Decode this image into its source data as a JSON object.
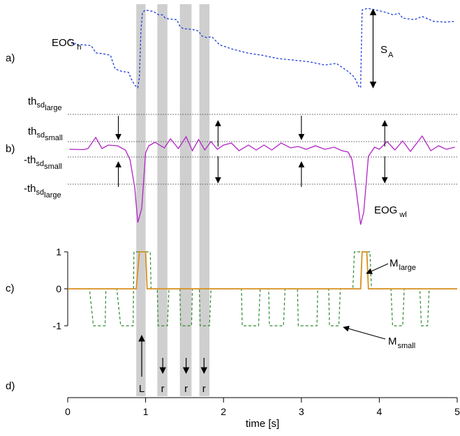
{
  "chart_data": {
    "type": "line",
    "xlabel": "time [s]",
    "xlim": [
      0,
      5
    ],
    "x_ticks": [
      "0",
      "1",
      "2",
      "3",
      "4",
      "5"
    ],
    "panel_labels": [
      "a)",
      "b)",
      "c)",
      "d)"
    ],
    "shaded_intervals_s": [
      [
        0.88,
        1.0
      ],
      [
        1.15,
        1.28
      ],
      [
        1.44,
        1.59
      ],
      [
        1.69,
        1.82
      ]
    ],
    "panel_a": {
      "series": [
        {
          "label_main": "EOG",
          "label_sub": "h",
          "color": "#1f3fd6",
          "style": "dashed",
          "x": [
            0.02,
            0.08,
            0.1,
            0.12,
            0.2,
            0.3,
            0.33,
            0.36,
            0.45,
            0.55,
            0.58,
            0.61,
            0.7,
            0.78,
            0.81,
            0.86,
            0.9,
            0.92,
            0.94,
            0.96,
            1.0,
            1.1,
            1.17,
            1.22,
            1.25,
            1.3,
            1.4,
            1.44,
            1.48,
            1.6,
            1.68,
            1.72,
            1.78,
            1.85,
            1.95,
            2.1,
            2.3,
            2.5,
            2.7,
            2.9,
            3.1,
            3.3,
            3.45,
            3.6,
            3.68,
            3.74,
            3.76,
            3.78,
            3.85,
            3.95,
            4.05,
            4.18,
            4.25,
            4.3,
            4.45,
            4.55,
            4.7,
            4.85,
            4.97
          ],
          "y": [
            0.62,
            0.55,
            0.57,
            0.55,
            0.55,
            0.54,
            0.5,
            0.45,
            0.44,
            0.42,
            0.33,
            0.25,
            0.22,
            0.21,
            0.14,
            0.05,
            0.02,
            0.15,
            0.72,
            0.95,
            0.98,
            0.96,
            0.92,
            0.92,
            0.88,
            0.87,
            0.86,
            0.78,
            0.75,
            0.74,
            0.72,
            0.66,
            0.64,
            0.65,
            0.55,
            0.5,
            0.45,
            0.42,
            0.38,
            0.36,
            0.34,
            0.3,
            0.32,
            0.22,
            0.15,
            0.03,
            0.02,
            0.98,
            1.0,
            0.98,
            0.96,
            0.92,
            0.94,
            0.88,
            0.86,
            0.9,
            0.84,
            0.83,
            0.84
          ]
        }
      ],
      "annotation_main": "S",
      "annotation_sub": "A"
    },
    "panel_b": {
      "series": [
        {
          "label_main": "EOG",
          "label_sub": "wl",
          "color": "#b323c7",
          "style": "solid",
          "x": [
            0.02,
            0.2,
            0.26,
            0.36,
            0.44,
            0.52,
            0.64,
            0.74,
            0.8,
            0.86,
            0.9,
            0.95,
            1.0,
            1.04,
            1.12,
            1.24,
            1.32,
            1.42,
            1.52,
            1.6,
            1.68,
            1.76,
            1.84,
            1.92,
            2.0,
            2.1,
            2.2,
            2.32,
            2.42,
            2.52,
            2.62,
            2.74,
            2.86,
            2.96,
            3.06,
            3.18,
            3.3,
            3.42,
            3.52,
            3.6,
            3.65,
            3.7,
            3.76,
            3.8,
            3.86,
            3.94,
            4.0,
            4.1,
            4.2,
            4.3,
            4.4,
            4.55,
            4.66,
            4.76,
            4.86,
            4.97
          ],
          "y": [
            0,
            -0.005,
            0.01,
            0.17,
            0.01,
            0.06,
            0.05,
            -0.01,
            -0.15,
            -0.55,
            -1.05,
            -0.85,
            -0.05,
            0.05,
            0.1,
            0.02,
            0.15,
            0.01,
            0.18,
            -0.02,
            0.14,
            -0.01,
            0.11,
            0.0,
            0.06,
            0.09,
            -0.02,
            0.06,
            -0.01,
            0.06,
            -0.01,
            0.09,
            0.02,
            0.04,
            0.0,
            0.05,
            0.0,
            0.03,
            -0.02,
            -0.04,
            -0.15,
            -0.55,
            -1.08,
            -0.9,
            -0.1,
            0.03,
            0.0,
            0.11,
            -0.01,
            0.12,
            -0.03,
            0.19,
            -0.02,
            0.05,
            0.0,
            0.03
          ]
        }
      ],
      "threshold_small": 0.11,
      "threshold_large": 0.5,
      "threshold_labels": [
        {
          "main": "th",
          "sub": "sd",
          "subsub": "large",
          "sign": ""
        },
        {
          "main": "th",
          "sub": "sd",
          "subsub": "small",
          "sign": ""
        },
        {
          "main": "th",
          "sub": "sd",
          "subsub": "small",
          "sign": "-"
        },
        {
          "main": "th",
          "sub": "sd",
          "subsub": "large",
          "sign": "-"
        }
      ],
      "arrow_times_s": [
        0.65,
        1.93,
        3.0,
        4.07
      ]
    },
    "panel_c": {
      "y_ticks": [
        "1",
        "0",
        "-1"
      ],
      "ylim": [
        -1,
        1
      ],
      "series": [
        {
          "label_main": "M",
          "label_sub": "large",
          "color": "#d9901e",
          "style": "solid",
          "x": [
            0,
            0.88,
            0.92,
            1.0,
            1.02,
            3.76,
            3.78,
            3.84,
            3.86,
            5.0
          ],
          "y": [
            0,
            0,
            1,
            1,
            0,
            0,
            1,
            1,
            0,
            0
          ]
        },
        {
          "label_main": "M",
          "label_sub": "small",
          "color": "#2e8b2e",
          "style": "dashed",
          "x": [
            0,
            0.28,
            0.33,
            0.48,
            0.49,
            0.63,
            0.68,
            0.84,
            0.85,
            1.06,
            1.07,
            1.15,
            1.16,
            1.28,
            1.3,
            1.44,
            1.45,
            1.59,
            1.6,
            1.69,
            1.7,
            1.82,
            1.84,
            2.23,
            2.24,
            2.45,
            2.47,
            2.58,
            2.59,
            2.77,
            2.79,
            2.95,
            2.96,
            3.2,
            3.21,
            3.35,
            3.36,
            3.48,
            3.5,
            3.66,
            3.68,
            3.88,
            3.9,
            4.15,
            4.17,
            4.3,
            4.32,
            4.52,
            4.54,
            4.62,
            4.64,
            5.0
          ],
          "y": [
            0,
            0,
            -1,
            -1,
            0,
            0,
            -1,
            -1,
            1,
            1,
            0,
            0,
            -1,
            -1,
            0,
            0,
            -1,
            -1,
            0,
            0,
            -1,
            -1,
            0,
            0,
            -1,
            -1,
            0,
            0,
            -1,
            -1,
            0,
            0,
            -1,
            -1,
            0,
            0,
            -1,
            -1,
            0,
            0,
            1,
            1,
            0,
            0,
            -1,
            -1,
            0,
            0,
            -1,
            -1,
            0,
            0
          ]
        }
      ]
    },
    "panel_d": {
      "events": [
        {
          "time_s": 0.95,
          "label": "L",
          "direction": "up"
        },
        {
          "time_s": 1.22,
          "label": "r",
          "direction": "down"
        },
        {
          "time_s": 1.52,
          "label": "r",
          "direction": "down"
        },
        {
          "time_s": 1.75,
          "label": "r",
          "direction": "down"
        }
      ]
    }
  }
}
